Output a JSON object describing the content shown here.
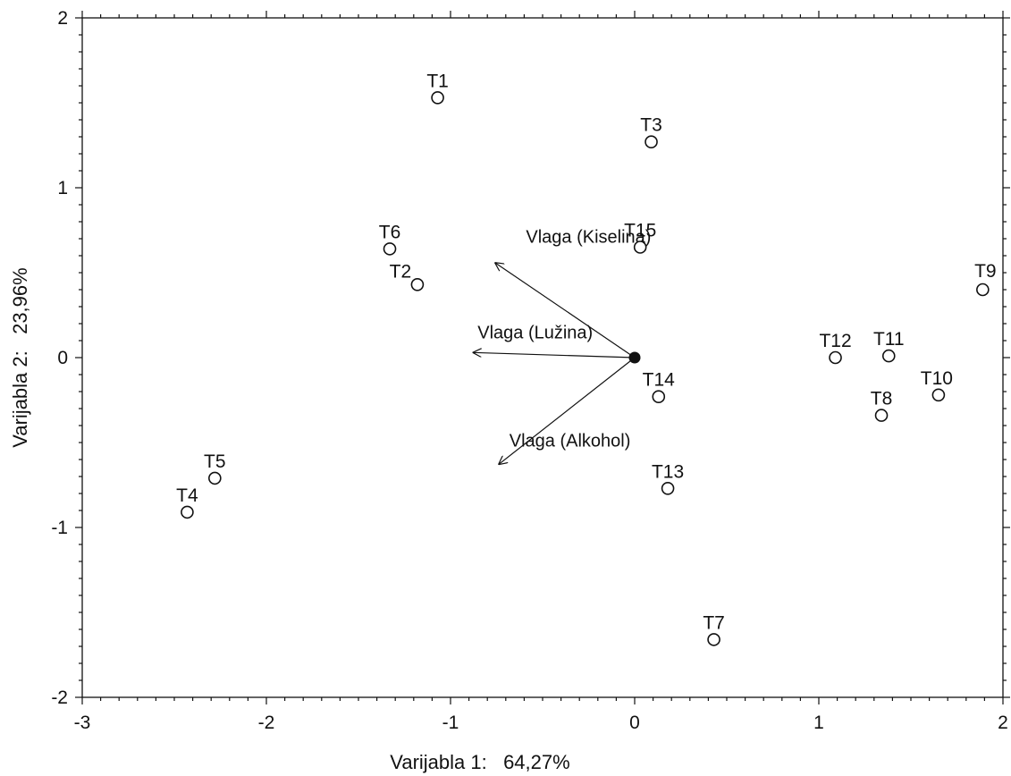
{
  "chart_data": {
    "type": "scatter",
    "title": "",
    "xlabel": "Varijabla 1:   64,27%",
    "ylabel": "Varijabla 2:   23,96%",
    "xlim": [
      -3,
      2
    ],
    "ylim": [
      -2,
      2
    ],
    "xticks": [
      "-3",
      "-2",
      "-1",
      "0",
      "1",
      "2"
    ],
    "yticks": [
      "-2",
      "-1",
      "0",
      "1",
      "2"
    ],
    "grid": false,
    "points": [
      {
        "label": "T1",
        "x": -1.07,
        "y": 1.53
      },
      {
        "label": "T2",
        "x": -1.18,
        "y": 0.43
      },
      {
        "label": "T3",
        "x": 0.09,
        "y": 1.27
      },
      {
        "label": "T4",
        "x": -2.43,
        "y": -0.91
      },
      {
        "label": "T5",
        "x": -2.28,
        "y": -0.71
      },
      {
        "label": "T6",
        "x": -1.33,
        "y": 0.64
      },
      {
        "label": "T7",
        "x": 0.43,
        "y": -1.66
      },
      {
        "label": "T8",
        "x": 1.34,
        "y": -0.34
      },
      {
        "label": "T9",
        "x": 1.89,
        "y": 0.4
      },
      {
        "label": "T10",
        "x": 1.65,
        "y": -0.22
      },
      {
        "label": "T11",
        "x": 1.38,
        "y": 0.01
      },
      {
        "label": "T12",
        "x": 1.09,
        "y": 0.0
      },
      {
        "label": "T13",
        "x": 0.18,
        "y": -0.77
      },
      {
        "label": "T14",
        "x": 0.13,
        "y": -0.23
      },
      {
        "label": "T15",
        "x": 0.03,
        "y": 0.65
      }
    ],
    "origin": {
      "x": 0,
      "y": 0
    },
    "vectors": [
      {
        "label": "Vlaga (Kiselina)",
        "x": -0.76,
        "y": 0.56
      },
      {
        "label": "Vlaga (Lužina)",
        "x": -0.88,
        "y": 0.03
      },
      {
        "label": "Vlaga (Alkohol)",
        "x": -0.74,
        "y": -0.63
      }
    ]
  }
}
